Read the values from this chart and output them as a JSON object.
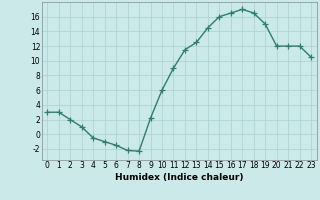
{
  "x": [
    0,
    1,
    2,
    3,
    4,
    5,
    6,
    7,
    8,
    9,
    10,
    11,
    12,
    13,
    14,
    15,
    16,
    17,
    18,
    19,
    20,
    21,
    22,
    23
  ],
  "y": [
    3,
    3,
    2,
    1,
    -0.5,
    -1,
    -1.5,
    -2.2,
    -2.3,
    2.2,
    6,
    9,
    11.5,
    12.5,
    14.5,
    16,
    16.5,
    17,
    16.5,
    15,
    12,
    12,
    12,
    10.5
  ],
  "line_color": "#2e7d6e",
  "marker": "+",
  "background_color": "#cce9e9",
  "grid_color": "#aed4d4",
  "xlabel": "Humidex (Indice chaleur)",
  "xlim": [
    -0.5,
    23.5
  ],
  "ylim": [
    -3.5,
    18
  ],
  "yticks": [
    -2,
    0,
    2,
    4,
    6,
    8,
    10,
    12,
    14,
    16
  ],
  "xticks": [
    0,
    1,
    2,
    3,
    4,
    5,
    6,
    7,
    8,
    9,
    10,
    11,
    12,
    13,
    14,
    15,
    16,
    17,
    18,
    19,
    20,
    21,
    22,
    23
  ],
  "tick_fontsize": 5.5,
  "xlabel_fontsize": 6.5,
  "line_width": 1.0,
  "marker_size": 4
}
